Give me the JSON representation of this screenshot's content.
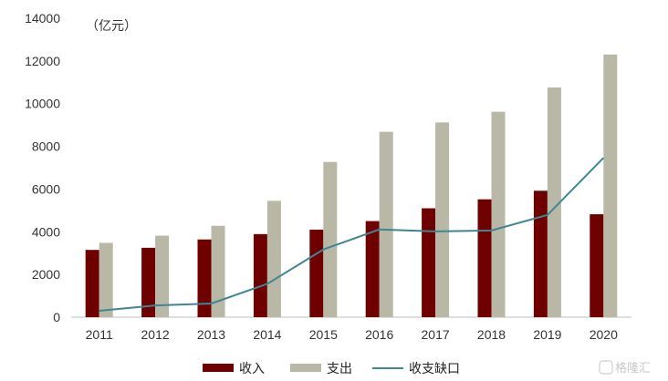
{
  "chart_data": {
    "type": "bar",
    "unit_label": "（亿元）",
    "categories": [
      "2011",
      "2012",
      "2013",
      "2014",
      "2015",
      "2016",
      "2017",
      "2018",
      "2019",
      "2020"
    ],
    "series": [
      {
        "name": "收入",
        "type": "bar",
        "color": "#6e0000",
        "values": [
          3150,
          3250,
          3640,
          3890,
          4100,
          4500,
          5100,
          5520,
          5920,
          4820
        ]
      },
      {
        "name": "支出",
        "type": "bar",
        "color": "#b9b8a6",
        "values": [
          3480,
          3820,
          4280,
          5450,
          7270,
          8680,
          9120,
          9620,
          10760,
          12300
        ]
      },
      {
        "name": "收支缺口",
        "type": "line",
        "color": "#3f8592",
        "values": [
          300,
          550,
          640,
          1560,
          3170,
          4110,
          4020,
          4060,
          4790,
          7460
        ]
      }
    ],
    "ylim": [
      0,
      14000
    ],
    "yticks": [
      0,
      2000,
      4000,
      6000,
      8000,
      10000,
      12000,
      14000
    ],
    "grid": false,
    "legend_position": "bottom-center"
  },
  "watermark": {
    "text": "格隆汇"
  }
}
